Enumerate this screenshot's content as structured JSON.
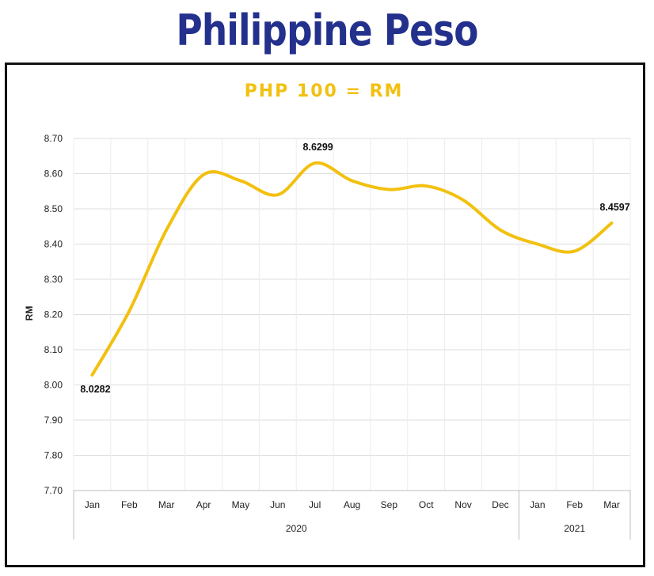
{
  "page_title": "Philippine Peso",
  "chart_data": {
    "type": "line",
    "title": "PHP 100 = RM",
    "ylabel": "RM",
    "xlabel": "",
    "ylim": [
      7.7,
      8.7
    ],
    "y_ticks": [
      "7.70",
      "7.80",
      "7.90",
      "8.00",
      "8.10",
      "8.20",
      "8.30",
      "8.40",
      "8.50",
      "8.60",
      "8.70"
    ],
    "categories": [
      "Jan",
      "Feb",
      "Mar",
      "Apr",
      "May",
      "Jun",
      "Jul",
      "Aug",
      "Sep",
      "Oct",
      "Nov",
      "Dec",
      "Jan",
      "Feb",
      "Mar"
    ],
    "groups": [
      {
        "label": "2020",
        "count": 12
      },
      {
        "label": "2021",
        "count": 3
      }
    ],
    "series": [
      {
        "color": "#f2c00f",
        "values": [
          8.0282,
          8.21,
          8.44,
          8.597,
          8.58,
          8.54,
          8.6299,
          8.58,
          8.555,
          8.565,
          8.525,
          8.44,
          8.4,
          8.38,
          8.4597
        ]
      }
    ],
    "data_labels": [
      {
        "index": 0,
        "text": "8.0282",
        "position": "below"
      },
      {
        "index": 6,
        "text": "8.6299",
        "position": "above"
      },
      {
        "index": 14,
        "text": "8.4597",
        "position": "above"
      }
    ],
    "grid": true,
    "legend": "none"
  }
}
